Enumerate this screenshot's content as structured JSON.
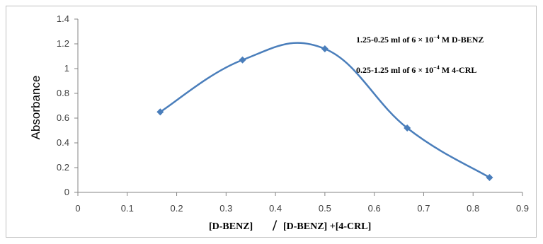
{
  "chart_data": {
    "type": "line",
    "ylabel": "Absorbance",
    "xlabel_parts": [
      "[D-BENZ]",
      "/",
      "[D-BENZ] +[4-CRL]"
    ],
    "xlim": [
      0,
      0.9
    ],
    "ylim": [
      0,
      1.4
    ],
    "x_ticks": [
      0,
      0.1,
      0.2,
      0.3,
      0.4,
      0.5,
      0.6,
      0.7,
      0.8,
      0.9
    ],
    "x_tick_labels": [
      "0",
      "0.1",
      "0.2",
      "0.3",
      "0.4",
      "0.5",
      "0.6",
      "0.7",
      "0.8",
      "0.9"
    ],
    "y_ticks": [
      0,
      0.2,
      0.4,
      0.6,
      0.8,
      1.0,
      1.2,
      1.4
    ],
    "y_tick_labels": [
      "0",
      "0.2",
      "0.4",
      "0.6",
      "0.8",
      "1",
      "1.2",
      "1.4"
    ],
    "grid": false,
    "smooth": true,
    "series": [
      {
        "x": [
          0.1667,
          0.3333,
          0.5,
          0.6667,
          0.8333
        ],
        "y": [
          0.65,
          1.07,
          1.16,
          0.52,
          0.12
        ],
        "color": "#4a7ebb",
        "marker": "diamond"
      }
    ],
    "annotations": [
      {
        "pre": "1.25-0.25 ml of 6 × 10",
        "sup": "−4",
        "post": " M D-BENZ"
      },
      {
        "pre": "0.25-1.25 ml of 6 × 10",
        "sup": "−4",
        "post": " M 4-CRL"
      }
    ]
  }
}
